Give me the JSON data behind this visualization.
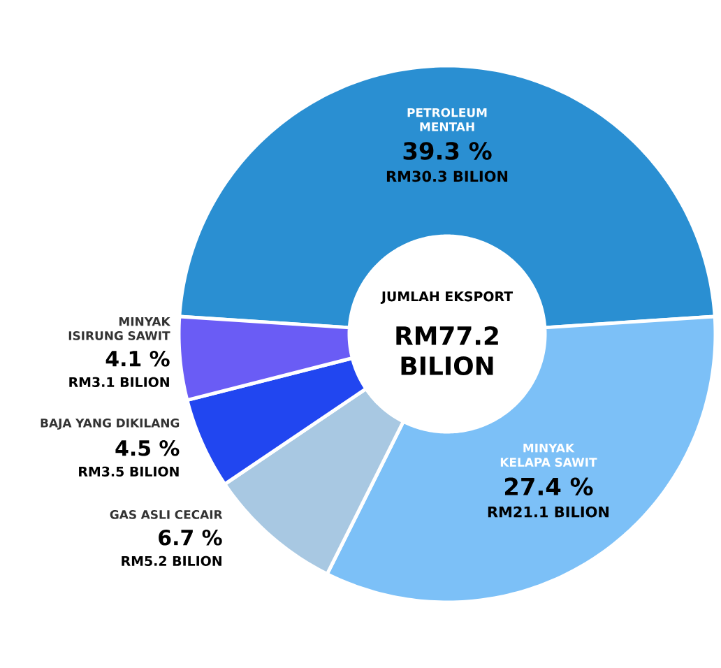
{
  "chart_data": {
    "type": "donut",
    "title": "JUMLAH EKSPORT",
    "subtitle": "RM77.2 BILION",
    "categories": [
      "PETROLEUM MENTAH",
      "MINYAK KELAPA SAWIT",
      "GAS ASLI CECAIR",
      "BAJA YANG DIKILANG",
      "MINYAK ISIRUNG SAWIT"
    ],
    "values": [
      39.3,
      27.4,
      6.7,
      4.5,
      4.1
    ],
    "colors": [
      "#2a8fd2",
      "#7cc0f7",
      "#a8c8e2",
      "#2146f0",
      "#6a5cf5"
    ],
    "value_labels": [
      "39.3 %",
      "27.4 %",
      "6.7 %",
      "4.5 %",
      "4.1 %"
    ],
    "annotations": [
      "RM30.3 BILION",
      "RM21.1 BILION",
      "RM5.2 BILION",
      "RM3.5 BILION",
      "RM3.1 BILION"
    ]
  }
}
